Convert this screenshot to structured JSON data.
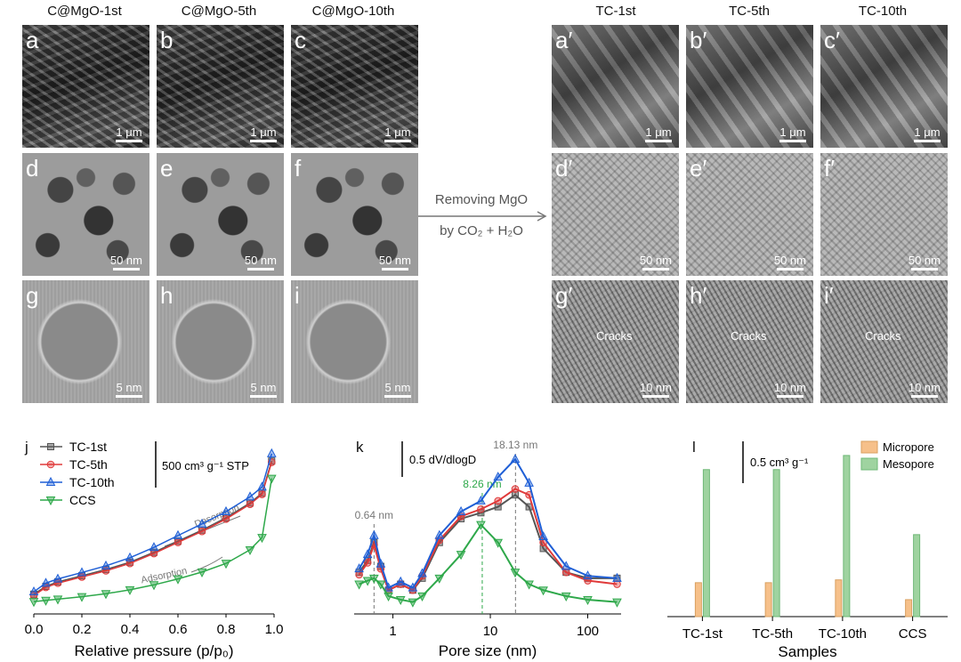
{
  "column_titles": [
    "C@MgO-1st",
    "C@MgO-5th",
    "C@MgO-10th",
    "TC-1st",
    "TC-5th",
    "TC-10th"
  ],
  "panels": [
    {
      "label": "a",
      "scale": "1 μm",
      "kind": "sem"
    },
    {
      "label": "b",
      "scale": "1 μm",
      "kind": "sem"
    },
    {
      "label": "c",
      "scale": "1 μm",
      "kind": "sem"
    },
    {
      "label": "a′",
      "scale": "1 μm",
      "kind": "semtc"
    },
    {
      "label": "b′",
      "scale": "1 μm",
      "kind": "semtc"
    },
    {
      "label": "c′",
      "scale": "1 μm",
      "kind": "semtc"
    },
    {
      "label": "d",
      "scale": "50 nm",
      "kind": "tem"
    },
    {
      "label": "e",
      "scale": "50 nm",
      "kind": "tem"
    },
    {
      "label": "f",
      "scale": "50 nm",
      "kind": "tem"
    },
    {
      "label": "d′",
      "scale": "50 nm",
      "kind": "temtc"
    },
    {
      "label": "e′",
      "scale": "50 nm",
      "kind": "temtc"
    },
    {
      "label": "f′",
      "scale": "50 nm",
      "kind": "temtc"
    },
    {
      "label": "g",
      "scale": "5 nm",
      "kind": "hr"
    },
    {
      "label": "h",
      "scale": "5 nm",
      "kind": "hr"
    },
    {
      "label": "i",
      "scale": "5 nm",
      "kind": "hr"
    },
    {
      "label": "g′",
      "scale": "10 nm",
      "kind": "hrtc",
      "note": "Cracks"
    },
    {
      "label": "h′",
      "scale": "10 nm",
      "kind": "hrtc",
      "note": "Cracks"
    },
    {
      "label": "i′",
      "scale": "10 nm",
      "kind": "hrtc",
      "note": "Cracks"
    }
  ],
  "process_arrow": {
    "line1": "Removing MgO",
    "line2": "by CO₂ + H₂O"
  },
  "colors": {
    "tc1": "#555555",
    "tc5": "#e03a3a",
    "tc10": "#1f5fd6",
    "ccs": "#2ea84a",
    "micro": "#f6c08a",
    "meso": "#9fd3a0"
  },
  "chart_data": [
    {
      "panel": "j",
      "type": "line",
      "xlabel": "Relative pressure (p/p₀)",
      "xlim": [
        0.0,
        1.0
      ],
      "xticks": [
        "0.0",
        "0.2",
        "0.4",
        "0.6",
        "0.8",
        "1.0"
      ],
      "scale_bar": "500 cm³ g⁻¹ STP",
      "annotations": [
        "Desorption",
        "Adsorption"
      ],
      "series": [
        {
          "name": "TC-1st",
          "x": [
            0.0,
            0.05,
            0.1,
            0.2,
            0.3,
            0.4,
            0.5,
            0.6,
            0.7,
            0.8,
            0.9,
            0.95,
            0.99
          ],
          "y": [
            230,
            262,
            280,
            305,
            330,
            360,
            400,
            445,
            490,
            540,
            600,
            640,
            770
          ]
        },
        {
          "name": "TC-5th",
          "x": [
            0.0,
            0.05,
            0.1,
            0.2,
            0.3,
            0.4,
            0.5,
            0.6,
            0.7,
            0.8,
            0.9,
            0.95,
            0.99
          ],
          "y": [
            225,
            258,
            275,
            300,
            325,
            355,
            395,
            440,
            485,
            535,
            595,
            635,
            765
          ]
        },
        {
          "name": "TC-10th",
          "x": [
            0.0,
            0.05,
            0.1,
            0.2,
            0.3,
            0.4,
            0.5,
            0.6,
            0.7,
            0.8,
            0.9,
            0.95,
            0.99
          ],
          "y": [
            240,
            275,
            292,
            318,
            345,
            378,
            420,
            468,
            515,
            565,
            625,
            665,
            800
          ]
        },
        {
          "name": "CCS",
          "x": [
            0.0,
            0.05,
            0.1,
            0.2,
            0.3,
            0.4,
            0.5,
            0.6,
            0.7,
            0.8,
            0.9,
            0.95,
            0.99
          ],
          "y": [
            200,
            205,
            210,
            220,
            232,
            248,
            268,
            292,
            320,
            355,
            410,
            460,
            700
          ]
        }
      ]
    },
    {
      "panel": "k",
      "type": "line",
      "xlabel": "Pore size (nm)",
      "xscale": "log",
      "xlim": [
        0.4,
        220
      ],
      "xticks": [
        "1",
        "10",
        "100"
      ],
      "scale_bar": "0.5 dV/dlogD",
      "annotations": [
        "0.64 nm",
        "8.26 nm",
        "18.13 nm"
      ],
      "series": [
        {
          "name": "TC-1st",
          "x": [
            0.45,
            0.55,
            0.64,
            0.75,
            0.9,
            1.2,
            1.6,
            2.0,
            3,
            5,
            8,
            12,
            18,
            25,
            35,
            60,
            100,
            200
          ],
          "y": [
            0.35,
            0.45,
            0.6,
            0.4,
            0.2,
            0.25,
            0.2,
            0.3,
            0.6,
            0.8,
            0.85,
            0.9,
            1.0,
            0.9,
            0.55,
            0.35,
            0.3,
            0.3
          ]
        },
        {
          "name": "TC-5th",
          "x": [
            0.45,
            0.55,
            0.64,
            0.75,
            0.9,
            1.2,
            1.6,
            2.0,
            3,
            5,
            8,
            12,
            18,
            25,
            35,
            60,
            100,
            200
          ],
          "y": [
            0.33,
            0.43,
            0.58,
            0.38,
            0.2,
            0.25,
            0.2,
            0.32,
            0.62,
            0.82,
            0.88,
            0.95,
            1.05,
            1.0,
            0.6,
            0.35,
            0.28,
            0.25
          ]
        },
        {
          "name": "TC-10th",
          "x": [
            0.45,
            0.55,
            0.64,
            0.75,
            0.9,
            1.2,
            1.6,
            2.0,
            3,
            5,
            8,
            12,
            18,
            25,
            35,
            60,
            100,
            200
          ],
          "y": [
            0.38,
            0.5,
            0.66,
            0.42,
            0.22,
            0.27,
            0.22,
            0.34,
            0.66,
            0.86,
            0.95,
            1.15,
            1.3,
            1.1,
            0.65,
            0.4,
            0.32,
            0.3
          ]
        },
        {
          "name": "CCS",
          "x": [
            0.45,
            0.55,
            0.64,
            0.75,
            0.9,
            1.2,
            1.6,
            2.0,
            3,
            5,
            8,
            12,
            18,
            25,
            35,
            60,
            100,
            200
          ],
          "y": [
            0.25,
            0.28,
            0.3,
            0.25,
            0.15,
            0.12,
            0.1,
            0.15,
            0.3,
            0.5,
            0.75,
            0.6,
            0.35,
            0.25,
            0.2,
            0.15,
            0.12,
            0.1
          ]
        }
      ]
    },
    {
      "panel": "l",
      "type": "bar",
      "xlabel": "Samples",
      "categories": [
        "TC-1st",
        "TC-5th",
        "TC-10th",
        "CCS"
      ],
      "scale_bar": "0.5 cm³ g⁻¹",
      "series": [
        {
          "name": "Micropore",
          "values": [
            0.12,
            0.12,
            0.13,
            0.06
          ]
        },
        {
          "name": "Mesopore",
          "values": [
            0.52,
            0.52,
            0.57,
            0.29
          ]
        }
      ]
    }
  ]
}
